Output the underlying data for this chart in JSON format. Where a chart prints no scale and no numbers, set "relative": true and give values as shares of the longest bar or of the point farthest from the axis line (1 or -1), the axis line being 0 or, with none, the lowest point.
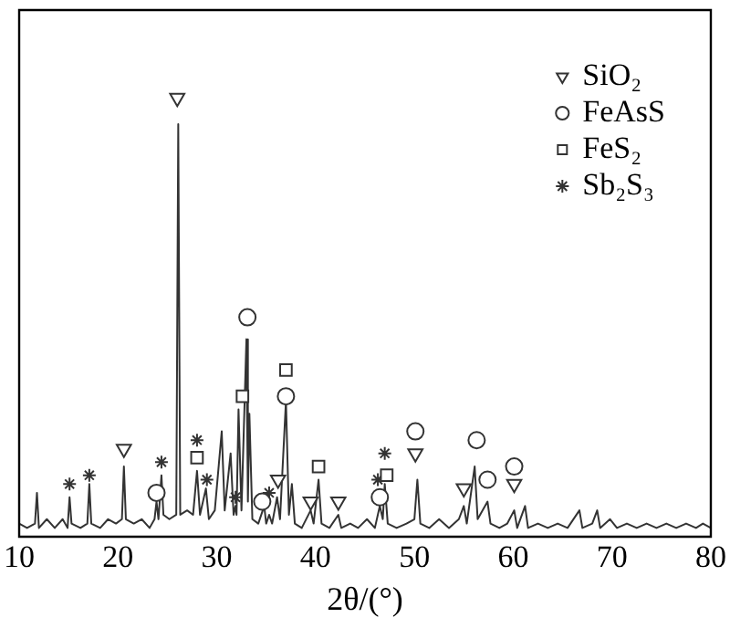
{
  "chart_data": {
    "type": "line",
    "relative": true,
    "xlabel": "2θ/(°)",
    "xlim": [
      10,
      80
    ],
    "xticks": [
      10,
      20,
      30,
      40,
      50,
      60,
      70,
      80
    ],
    "grid": false,
    "legend": "top right",
    "series": [
      {
        "type": "line",
        "color": "#333333",
        "marker": "none",
        "x": [
          10,
          10.8,
          11.6,
          11.8,
          12.0,
          12.8,
          13.6,
          14.4,
          14.9,
          15.1,
          15.3,
          16.2,
          16.9,
          17.1,
          17.3,
          18.2,
          19.0,
          19.8,
          20.4,
          20.6,
          20.8,
          21.6,
          22.4,
          23.2,
          23.7,
          23.9,
          24.1,
          24.4,
          24.6,
          25.2,
          25.9,
          26.1,
          26.3,
          27.0,
          27.6,
          28.0,
          28.3,
          28.9,
          29.2,
          29.8,
          30.5,
          30.8,
          31.4,
          31.7,
          31.9,
          32.0,
          32.2,
          32.5,
          33.0,
          33.15,
          33.3,
          33.6,
          34.2,
          34.8,
          35.0,
          35.3,
          35.6,
          36.1,
          36.4,
          37.0,
          37.3,
          37.6,
          37.9,
          38.6,
          39.5,
          39.8,
          40.3,
          40.6,
          41.4,
          42.3,
          42.6,
          43.5,
          44.3,
          45.2,
          46.0,
          46.5,
          46.8,
          47.0,
          47.3,
          48.2,
          49.2,
          50.0,
          50.3,
          50.6,
          51.5,
          52.5,
          53.5,
          54.5,
          55.0,
          55.3,
          56.1,
          56.4,
          57.4,
          57.7,
          58.6,
          59.4,
          60.1,
          60.4,
          61.2,
          61.5,
          62.5,
          63.5,
          64.5,
          65.5,
          66.7,
          67.0,
          68.0,
          68.5,
          68.8,
          69.8,
          70.5,
          71.5,
          72.5,
          73.5,
          74.5,
          75.5,
          76.5,
          77.5,
          78.5,
          79.2,
          80
        ],
        "values": [
          0.03,
          0.02,
          0.03,
          0.1,
          0.02,
          0.04,
          0.02,
          0.04,
          0.02,
          0.09,
          0.03,
          0.02,
          0.03,
          0.12,
          0.03,
          0.02,
          0.04,
          0.03,
          0.04,
          0.16,
          0.04,
          0.03,
          0.04,
          0.02,
          0.04,
          0.08,
          0.04,
          0.14,
          0.05,
          0.04,
          0.05,
          0.94,
          0.05,
          0.06,
          0.05,
          0.15,
          0.05,
          0.11,
          0.04,
          0.06,
          0.24,
          0.06,
          0.19,
          0.05,
          0.07,
          0.05,
          0.29,
          0.06,
          0.45,
          0.08,
          0.28,
          0.04,
          0.03,
          0.07,
          0.03,
          0.05,
          0.03,
          0.09,
          0.04,
          0.31,
          0.05,
          0.12,
          0.03,
          0.02,
          0.06,
          0.03,
          0.13,
          0.03,
          0.02,
          0.05,
          0.02,
          0.03,
          0.02,
          0.04,
          0.02,
          0.07,
          0.04,
          0.12,
          0.03,
          0.02,
          0.03,
          0.04,
          0.13,
          0.03,
          0.02,
          0.04,
          0.02,
          0.04,
          0.07,
          0.03,
          0.16,
          0.04,
          0.08,
          0.03,
          0.02,
          0.03,
          0.06,
          0.02,
          0.07,
          0.02,
          0.03,
          0.02,
          0.03,
          0.02,
          0.06,
          0.02,
          0.03,
          0.06,
          0.02,
          0.04,
          0.02,
          0.03,
          0.02,
          0.03,
          0.02,
          0.03,
          0.02,
          0.03,
          0.02,
          0.03,
          0.02
        ]
      },
      {
        "type": "scatter",
        "name": "SiO₂",
        "color": "#333333",
        "marker": "triangle",
        "x": [
          20.6,
          26.0,
          36.2,
          39.5,
          42.3,
          50.1,
          55.0,
          60.1
        ],
        "values": [
          0.2,
          1,
          0.13,
          0.08,
          0.08,
          0.19,
          0.11,
          0.12
        ]
      },
      {
        "type": "scatter",
        "name": "FeAsS",
        "color": "#333333",
        "marker": "circle",
        "x": [
          23.9,
          33.1,
          34.6,
          37.0,
          46.5,
          50.1,
          56.3,
          57.4,
          60.1
        ],
        "values": [
          0.1,
          0.5,
          0.08,
          0.32,
          0.09,
          0.24,
          0.22,
          0.13,
          0.16
        ]
      },
      {
        "type": "scatter",
        "name": "FeS₂",
        "color": "#333333",
        "marker": "square",
        "x": [
          28.0,
          32.6,
          37.0,
          40.3,
          47.2
        ],
        "values": [
          0.18,
          0.32,
          0.38,
          0.16,
          0.14
        ]
      },
      {
        "type": "scatter",
        "name": "Sb₂S₃",
        "color": "#333333",
        "marker": "cross",
        "x": [
          15.1,
          17.1,
          24.4,
          28.0,
          29.0,
          31.9,
          35.3,
          46.3,
          47.0
        ],
        "values": [
          0.12,
          0.14,
          0.17,
          0.22,
          0.13,
          0.09,
          0.1,
          0.13,
          0.19
        ]
      }
    ]
  }
}
